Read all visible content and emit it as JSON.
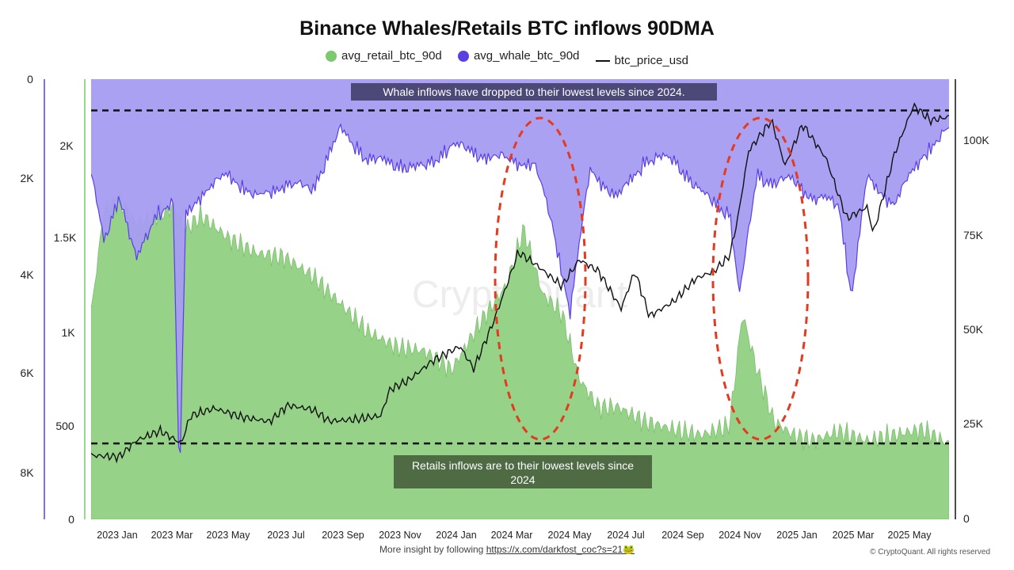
{
  "title": "Binance Whales/Retails BTC inflows 90DMA",
  "legend": [
    {
      "name": "avg_retail_btc_90d",
      "color": "#7dc96d"
    },
    {
      "name": "avg_whale_btc_90d",
      "color": "#5b3fe0"
    },
    {
      "name": "btc_price_usd",
      "color": "#111111"
    }
  ],
  "annotations": {
    "whale_note": "Whale inflows have dropped to their lowest levels since 2024.",
    "retail_note_line1": "Retails inflows are to their lowest levels since",
    "retail_note_line2": "2024"
  },
  "footer": {
    "text": "More insight by following",
    "link": "https://x.com/darkfost_coc?s=21🐸",
    "copyright": "© CryptoQuant. All rights reserved"
  },
  "watermark": "CryptoQuant",
  "colors": {
    "retail_fill": "#96d389",
    "whale_fill": "#a69cf1",
    "whale_line": "#5a3ee8",
    "overlap_fill": "#5f7ba3",
    "annotation_whale_bg": "#4c4878",
    "annotation_retail_bg": "#4e6b44",
    "ellipse": "#e53a1f"
  },
  "chart_data": {
    "type": "area",
    "x_ticks": [
      "2023 Jan",
      "2023 Mar",
      "2023 May",
      "2023 Jul",
      "2023 Sep",
      "2023 Nov",
      "2024 Jan",
      "2024 Mar",
      "2024 May",
      "2024 Jul",
      "2024 Sep",
      "2024 Nov",
      "2025 Jan",
      "2025 Mar",
      "2025 May"
    ],
    "x_range": [
      "2022-12-01",
      "2025-06-30"
    ],
    "axes": {
      "whale_axis": {
        "ticks": [
          "0",
          "2K",
          "4K",
          "6K",
          "8K"
        ],
        "range": [
          0,
          9000
        ],
        "inverted": true
      },
      "retail_axis": {
        "ticks": [
          "2K",
          "1.5K",
          "1K",
          "500",
          "0"
        ],
        "range": [
          0,
          2350
        ]
      },
      "price_axis": {
        "ticks": [
          "100K",
          "75K",
          "50K",
          "25K",
          "0"
        ],
        "range": [
          0,
          117000
        ]
      }
    },
    "series": [
      {
        "name": "avg_retail_btc_90d",
        "unit": "BTC",
        "x": [
          "2022-12-01",
          "2022-12-15",
          "2023-01-01",
          "2023-01-20",
          "2023-02-10",
          "2023-03-01",
          "2023-03-15",
          "2023-04-01",
          "2023-05-01",
          "2023-06-01",
          "2023-07-01",
          "2023-08-01",
          "2023-09-01",
          "2023-10-01",
          "2023-11-01",
          "2023-12-01",
          "2024-01-01",
          "2024-02-01",
          "2024-03-01",
          "2024-03-20",
          "2024-04-10",
          "2024-05-01",
          "2024-05-20",
          "2024-06-10",
          "2024-07-01",
          "2024-08-01",
          "2024-09-01",
          "2024-10-01",
          "2024-11-01",
          "2024-11-15",
          "2024-12-01",
          "2024-12-20",
          "2025-01-10",
          "2025-02-01",
          "2025-03-01",
          "2025-04-01",
          "2025-05-01",
          "2025-06-01",
          "2025-06-30"
        ],
        "values": [
          1100,
          1650,
          1700,
          1580,
          1620,
          1670,
          1550,
          1620,
          1500,
          1420,
          1400,
          1300,
          1150,
          1000,
          920,
          900,
          800,
          1050,
          1250,
          1550,
          1200,
          1100,
          750,
          600,
          600,
          520,
          480,
          450,
          500,
          1100,
          800,
          520,
          450,
          420,
          470,
          420,
          450,
          480,
          400
        ]
      },
      {
        "name": "avg_whale_btc_90d",
        "unit": "BTC",
        "x": [
          "2022-12-01",
          "2022-12-15",
          "2023-01-01",
          "2023-01-20",
          "2023-02-10",
          "2023-03-01",
          "2023-03-08",
          "2023-03-15",
          "2023-04-01",
          "2023-05-01",
          "2023-06-01",
          "2023-07-01",
          "2023-08-01",
          "2023-09-01",
          "2023-10-01",
          "2023-11-01",
          "2023-12-01",
          "2024-01-01",
          "2024-02-01",
          "2024-03-01",
          "2024-04-01",
          "2024-04-20",
          "2024-05-10",
          "2024-06-01",
          "2024-07-01",
          "2024-08-01",
          "2024-09-01",
          "2024-10-01",
          "2024-11-01",
          "2024-11-12",
          "2024-12-01",
          "2024-12-20",
          "2025-01-10",
          "2025-02-01",
          "2025-03-01",
          "2025-03-15",
          "2025-04-01",
          "2025-05-01",
          "2025-06-01",
          "2025-06-30"
        ],
        "values": [
          1800,
          3200,
          2200,
          3600,
          2600,
          2400,
          8300,
          2600,
          2200,
          1800,
          2300,
          2000,
          2100,
          900,
          1500,
          1600,
          1700,
          1200,
          1400,
          1500,
          1600,
          2800,
          4600,
          1700,
          2300,
          1500,
          1500,
          2200,
          2600,
          4300,
          1800,
          2000,
          1900,
          2300,
          2400,
          4300,
          1900,
          2400,
          1400,
          900
        ]
      },
      {
        "name": "btc_price_usd",
        "unit": "USD",
        "x": [
          "2022-12-01",
          "2023-01-01",
          "2023-01-20",
          "2023-02-15",
          "2023-03-10",
          "2023-03-20",
          "2023-04-15",
          "2023-05-15",
          "2023-06-15",
          "2023-07-05",
          "2023-08-01",
          "2023-08-20",
          "2023-09-15",
          "2023-10-15",
          "2023-10-25",
          "2023-11-15",
          "2023-12-10",
          "2024-01-10",
          "2024-01-25",
          "2024-02-15",
          "2024-03-01",
          "2024-03-14",
          "2024-04-01",
          "2024-05-01",
          "2024-05-20",
          "2024-06-10",
          "2024-07-05",
          "2024-07-20",
          "2024-08-05",
          "2024-09-01",
          "2024-09-25",
          "2024-10-15",
          "2024-11-01",
          "2024-11-10",
          "2024-11-22",
          "2024-12-17",
          "2025-01-01",
          "2025-01-20",
          "2025-02-15",
          "2025-03-01",
          "2025-03-10",
          "2025-04-01",
          "2025-04-08",
          "2025-05-01",
          "2025-05-22",
          "2025-06-10",
          "2025-06-30"
        ],
        "values": [
          17000,
          16600,
          21000,
          23500,
          20200,
          27500,
          29500,
          27200,
          26000,
          30300,
          29200,
          26100,
          26500,
          27500,
          34500,
          37000,
          42000,
          46000,
          40000,
          52000,
          62000,
          71000,
          68000,
          62000,
          69000,
          66000,
          56000,
          66000,
          54000,
          58000,
          64000,
          66000,
          70000,
          80000,
          98000,
          106000,
          94000,
          105000,
          96000,
          86000,
          80000,
          83000,
          76000,
          97000,
          110000,
          106000,
          107000
        ]
      }
    ],
    "reference_lines": [
      {
        "axis": "whale_axis",
        "value": 640,
        "style": "dashed"
      },
      {
        "axis": "retail_axis",
        "value": 405,
        "style": "dashed"
      }
    ],
    "highlights": [
      "ellipse around 2024 Apr–May",
      "ellipse around 2024 Nov–Dec"
    ],
    "grid": false
  }
}
